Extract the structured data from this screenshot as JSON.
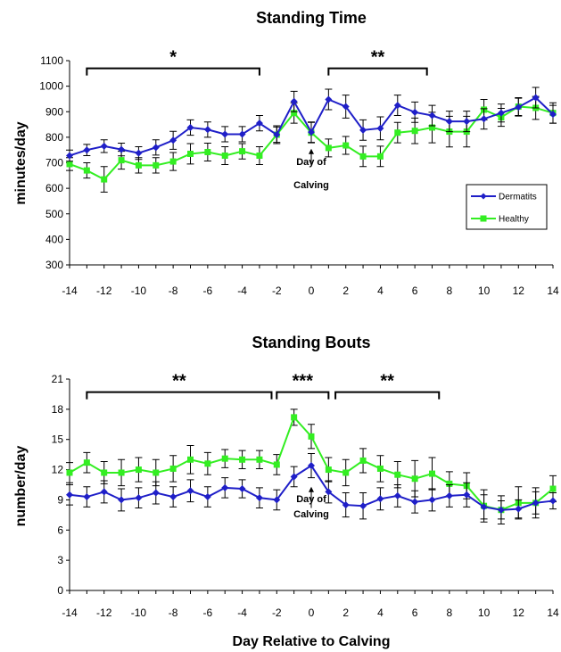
{
  "colors": {
    "dermatitis": "#1F1FC8",
    "healthy": "#33EE22",
    "axis": "#000000"
  },
  "xlabel": "Day Relative to Calving",
  "legend": {
    "dermatitis": "Dermatits",
    "healthy": "Healthy"
  },
  "chart_data": [
    {
      "type": "line",
      "title": "Standing Time",
      "ylabel": "minutes/day",
      "xlabel": "",
      "ylim": [
        300,
        1100
      ],
      "yticks": [
        "300",
        "400",
        "500",
        "600",
        "700",
        "800",
        "900",
        "1000",
        "1100"
      ],
      "xlim": [
        -14,
        14
      ],
      "xticks": [
        "-14",
        "-12",
        "-10",
        "-8",
        "-6",
        "-4",
        "-2",
        "0",
        "2",
        "4",
        "6",
        "8",
        "10",
        "12",
        "14"
      ],
      "grid": false,
      "legend_position": "bottom-right",
      "annotation": {
        "text_line1": "Day of",
        "text_line2": "Calving",
        "x": 0,
        "y_from": 690,
        "y_to": 755
      },
      "significance": [
        {
          "label": "*",
          "x_start": -13,
          "x_end": -3,
          "y": 1070
        },
        {
          "label": "**",
          "x_start": 1,
          "x_end": 6.7,
          "y": 1070
        }
      ],
      "x": [
        -14,
        -13,
        -12,
        -11,
        -10,
        -9,
        -8,
        -7,
        -6,
        -5,
        -4,
        -3,
        -2,
        -1,
        0,
        1,
        2,
        3,
        4,
        5,
        6,
        7,
        8,
        9,
        10,
        11,
        12,
        13,
        14
      ],
      "series": [
        {
          "name": "Dermatits",
          "key": "dermatitis",
          "values": [
            728,
            750,
            765,
            752,
            738,
            760,
            788,
            838,
            830,
            812,
            812,
            855,
            810,
            940,
            820,
            948,
            920,
            828,
            835,
            925,
            898,
            885,
            862,
            862,
            872,
            895,
            918,
            955,
            890
          ],
          "err": [
            22,
            22,
            25,
            25,
            25,
            30,
            35,
            30,
            30,
            30,
            30,
            30,
            30,
            40,
            40,
            40,
            45,
            40,
            45,
            40,
            40,
            40,
            40,
            40,
            40,
            35,
            35,
            40,
            35
          ]
        },
        {
          "name": "Healthy",
          "key": "healthy",
          "values": [
            695,
            670,
            635,
            710,
            690,
            690,
            705,
            735,
            742,
            728,
            745,
            728,
            810,
            895,
            818,
            758,
            768,
            725,
            725,
            818,
            825,
            838,
            822,
            822,
            908,
            878,
            920,
            915,
            895
          ],
          "err": [
            25,
            30,
            50,
            35,
            30,
            30,
            35,
            40,
            35,
            35,
            30,
            35,
            35,
            40,
            40,
            35,
            35,
            40,
            40,
            40,
            50,
            60,
            60,
            60,
            40,
            35,
            35,
            45,
            40
          ]
        }
      ]
    },
    {
      "type": "line",
      "title": "Standing Bouts",
      "ylabel": "number/day",
      "xlabel": "Day Relative to Calving",
      "ylim": [
        0,
        21
      ],
      "yticks": [
        "0",
        "3",
        "6",
        "9",
        "12",
        "15",
        "18",
        "21"
      ],
      "xlim": [
        -14,
        14
      ],
      "xticks": [
        "-14",
        "-12",
        "-10",
        "-8",
        "-6",
        "-4",
        "-2",
        "0",
        "2",
        "4",
        "6",
        "8",
        "10",
        "12",
        "14"
      ],
      "grid": false,
      "legend_position": "none",
      "annotation": {
        "text_line1": "Day of",
        "text_line2": "Calving",
        "x": 0,
        "y_from": 8.2,
        "y_to": 10.3
      },
      "significance": [
        {
          "label": "**",
          "x_start": -13,
          "x_end": -2.3,
          "y": 19.7
        },
        {
          "label": "***",
          "x_start": -2,
          "x_end": 1,
          "y": 19.7
        },
        {
          "label": "**",
          "x_start": 1.4,
          "x_end": 7.4,
          "y": 19.7
        }
      ],
      "x": [
        -14,
        -13,
        -12,
        -11,
        -10,
        -9,
        -8,
        -7,
        -6,
        -5,
        -4,
        -3,
        -2,
        -1,
        0,
        1,
        2,
        3,
        4,
        5,
        6,
        7,
        8,
        9,
        10,
        11,
        12,
        13,
        14
      ],
      "series": [
        {
          "name": "Dermatits",
          "key": "dermatitis",
          "values": [
            9.5,
            9.3,
            9.8,
            9.0,
            9.2,
            9.7,
            9.3,
            9.9,
            9.3,
            10.2,
            10.1,
            9.2,
            9.0,
            11.3,
            12.4,
            9.8,
            8.5,
            8.4,
            9.1,
            9.4,
            8.8,
            9.0,
            9.4,
            9.5,
            8.3,
            8.0,
            8.1,
            8.7,
            8.9
          ],
          "err": [
            1.0,
            1.0,
            1.1,
            1.1,
            1.0,
            1.1,
            1.0,
            1.1,
            1.0,
            1.0,
            0.9,
            1.0,
            1.0,
            1.0,
            1.2,
            1.1,
            1.2,
            1.3,
            1.1,
            1.1,
            1.1,
            1.1,
            1.1,
            1.2,
            1.2,
            0.9,
            0.9,
            1.1,
            0.8
          ]
        },
        {
          "name": "Healthy",
          "key": "healthy",
          "values": [
            11.7,
            12.7,
            11.7,
            11.7,
            12.0,
            11.7,
            12.1,
            13.0,
            12.6,
            13.1,
            13.0,
            13.0,
            12.5,
            17.2,
            15.3,
            12.0,
            11.7,
            12.9,
            12.1,
            11.5,
            11.1,
            11.6,
            10.6,
            10.4,
            8.4,
            8.0,
            8.7,
            8.7,
            10.1
          ],
          "err": [
            1.0,
            1.0,
            1.1,
            1.3,
            1.2,
            1.3,
            1.3,
            1.4,
            1.1,
            0.9,
            0.9,
            0.9,
            1.0,
            0.8,
            1.2,
            1.2,
            1.3,
            1.2,
            1.3,
            1.3,
            1.8,
            1.6,
            1.2,
            1.3,
            1.6,
            1.4,
            1.6,
            1.5,
            1.3
          ]
        }
      ]
    }
  ]
}
